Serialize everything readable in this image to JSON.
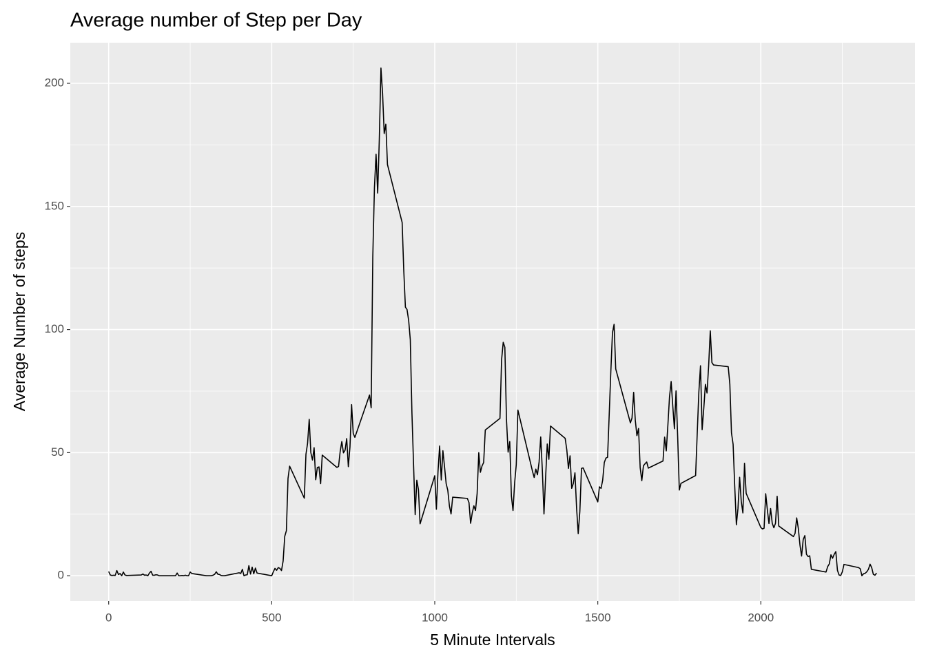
{
  "chart_data": {
    "type": "line",
    "title": "Average number of Step per Day",
    "x_label": "5 Minute Intervals",
    "y_label": "Average Number of steps",
    "xlim": [
      -117.75,
      2472.75
    ],
    "ylim": [
      -10.3,
      216.5
    ],
    "xticks": [
      0,
      500,
      1000,
      1500,
      2000
    ],
    "yticks": [
      0,
      50,
      100,
      150,
      200
    ],
    "x_minor_ticks": [
      250,
      750,
      1250,
      1750,
      2250
    ],
    "y_minor_ticks": [
      25,
      75,
      125,
      175
    ],
    "grid": true,
    "color": "#000000",
    "x": [
      0,
      5,
      10,
      15,
      20,
      25,
      30,
      35,
      40,
      45,
      50,
      55,
      100,
      105,
      110,
      115,
      120,
      125,
      130,
      135,
      140,
      145,
      150,
      155,
      200,
      205,
      210,
      215,
      220,
      225,
      230,
      235,
      240,
      245,
      250,
      255,
      300,
      305,
      310,
      315,
      320,
      325,
      330,
      335,
      340,
      345,
      350,
      355,
      400,
      405,
      410,
      415,
      420,
      425,
      430,
      435,
      440,
      445,
      450,
      455,
      500,
      505,
      510,
      515,
      520,
      525,
      530,
      535,
      540,
      545,
      550,
      555,
      600,
      605,
      610,
      615,
      620,
      625,
      630,
      635,
      640,
      645,
      650,
      655,
      700,
      705,
      710,
      715,
      720,
      725,
      730,
      735,
      740,
      745,
      750,
      755,
      800,
      805,
      810,
      815,
      820,
      825,
      830,
      835,
      840,
      845,
      850,
      855,
      900,
      905,
      910,
      915,
      920,
      925,
      930,
      935,
      940,
      945,
      950,
      955,
      1000,
      1005,
      1010,
      1015,
      1020,
      1025,
      1030,
      1035,
      1040,
      1045,
      1050,
      1055,
      1100,
      1105,
      1110,
      1115,
      1120,
      1125,
      1130,
      1135,
      1140,
      1145,
      1150,
      1155,
      1200,
      1205,
      1210,
      1215,
      1220,
      1225,
      1230,
      1235,
      1240,
      1245,
      1250,
      1255,
      1300,
      1305,
      1310,
      1315,
      1320,
      1325,
      1330,
      1335,
      1340,
      1345,
      1350,
      1355,
      1400,
      1405,
      1410,
      1415,
      1420,
      1425,
      1430,
      1435,
      1440,
      1445,
      1450,
      1455,
      1500,
      1505,
      1510,
      1515,
      1520,
      1525,
      1530,
      1535,
      1540,
      1545,
      1550,
      1555,
      1600,
      1605,
      1610,
      1615,
      1620,
      1625,
      1630,
      1635,
      1640,
      1645,
      1650,
      1655,
      1700,
      1705,
      1710,
      1715,
      1720,
      1725,
      1730,
      1735,
      1740,
      1745,
      1750,
      1755,
      1800,
      1805,
      1810,
      1815,
      1820,
      1825,
      1830,
      1835,
      1840,
      1845,
      1850,
      1855,
      1900,
      1905,
      1910,
      1915,
      1920,
      1925,
      1930,
      1935,
      1940,
      1945,
      1950,
      1955,
      2000,
      2005,
      2010,
      2015,
      2020,
      2025,
      2030,
      2035,
      2040,
      2045,
      2050,
      2055,
      2100,
      2105,
      2110,
      2115,
      2120,
      2125,
      2130,
      2135,
      2140,
      2145,
      2150,
      2155,
      2200,
      2205,
      2210,
      2215,
      2220,
      2225,
      2230,
      2235,
      2240,
      2245,
      2250,
      2255,
      2300,
      2305,
      2310,
      2315,
      2320,
      2325,
      2330,
      2335,
      2340,
      2345,
      2350,
      2355
    ],
    "values": [
      1.7,
      0.3,
      0.1,
      0.2,
      0.1,
      2.1,
      0.5,
      0.9,
      0,
      1.5,
      0.3,
      0.1,
      0.3,
      0.7,
      0.2,
      0.3,
      0,
      1.1,
      1.8,
      0.2,
      0.2,
      0.4,
      0.3,
      0,
      0,
      0,
      1.1,
      0,
      0,
      0.1,
      0,
      0.2,
      0,
      0,
      1.5,
      0.9,
      0,
      0,
      0,
      0,
      0.2,
      0.6,
      1.6,
      0.6,
      0.5,
      0.1,
      0,
      0,
      1.2,
      0.9,
      2.6,
      0,
      0.3,
      0.4,
      4.1,
      0.7,
      3.5,
      0.8,
      3.1,
      1.1,
      0,
      1.6,
      3,
      2.2,
      3.3,
      3,
      2.1,
      6,
      16,
      18.3,
      39.5,
      44.5,
      31.5,
      49.3,
      53.8,
      63.5,
      50,
      47,
      52,
      39,
      44,
      44.2,
      37.4,
      49,
      44,
      44.4,
      50.5,
      54.5,
      49.9,
      51,
      55.7,
      44.3,
      52.3,
      69.5,
      57.8,
      56.2,
      73.4,
      68.2,
      129.4,
      157.5,
      171.2,
      155.4,
      177.3,
      206.2,
      195.9,
      179.6,
      183.4,
      167,
      143.5,
      124,
      109.1,
      108.1,
      103.7,
      95.9,
      66.2,
      45.2,
      24.8,
      38.8,
      35,
      21.1,
      40.6,
      27,
      42.4,
      52.7,
      38.9,
      50.8,
      44.3,
      37.4,
      34.7,
      28.3,
      25.1,
      31.9,
      31.4,
      29.7,
      21.3,
      25.5,
      28.4,
      26.5,
      33.4,
      50,
      42,
      44.6,
      46,
      59.2,
      63.9,
      87.7,
      94.8,
      92.8,
      63.4,
      50.2,
      54.5,
      32.4,
      26.5,
      37.7,
      45.1,
      67.3,
      42.3,
      39.9,
      43.3,
      41,
      46.2,
      56.4,
      42.8,
      25.1,
      40,
      53.5,
      47.3,
      60.8,
      55.8,
      51.1,
      43.6,
      48.7,
      35.5,
      37.5,
      41.8,
      27.5,
      17.1,
      26.1,
      43.6,
      43.8,
      30,
      36.1,
      35.5,
      38.8,
      46,
      47.8,
      48.1,
      65.3,
      82.9,
      98.7,
      102.1,
      84,
      62.1,
      64.1,
      74.5,
      63.2,
      56.9,
      59.8,
      43.9,
      38.6,
      44.7,
      45.5,
      46.2,
      43.7,
      46.6,
      56.3,
      50.7,
      61.2,
      72.7,
      78.9,
      68.9,
      59.7,
      75.1,
      56.5,
      34.8,
      37.5,
      40.7,
      58,
      74.7,
      85.3,
      59.3,
      67.8,
      77.7,
      74.2,
      85.3,
      99.5,
      86.6,
      85.6,
      84.9,
      77.8,
      58,
      53.4,
      36.3,
      20.7,
      27.4,
      40,
      30.2,
      25.5,
      45.7,
      33.5,
      19.6,
      19,
      19.3,
      33.3,
      26.8,
      21.2,
      27.3,
      21.3,
      19.5,
      21.3,
      32.3,
      20.2,
      15.9,
      17.2,
      23.5,
      19.2,
      12.5,
      8,
      14.7,
      16.3,
      8.7,
      7.8,
      8.1,
      2.6,
      1.5,
      3.7,
      4.8,
      8.5,
      7.1,
      8.7,
      9.8,
      2.2,
      0.3,
      0.1,
      1.6,
      4.6,
      3.3,
      2.8,
      0,
      0.8,
      1,
      1.6,
      2.6,
      4.7,
      3.3,
      0.6,
      0.2,
      1.1
    ]
  }
}
